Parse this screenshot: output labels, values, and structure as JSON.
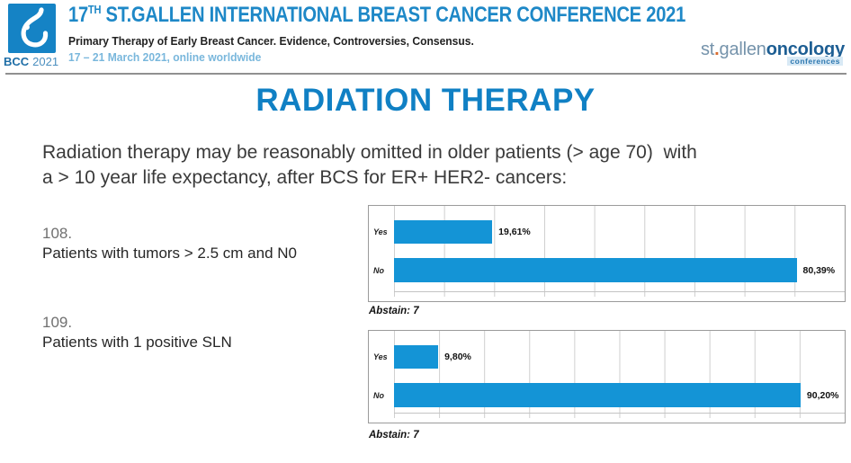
{
  "header": {
    "badge": {
      "bold": "BCC",
      "year": "2021"
    },
    "title_num": "17",
    "title_sup": "TH",
    "title_rest": " ST.GALLEN INTERNATIONAL BREAST CANCER CONFERENCE 2021",
    "subtitle": "Primary Therapy of Early Breast Cancer. Evidence, Controversies, Consensus.",
    "date_line": "17 – 21 March 2021, online worldwide",
    "org_logo": {
      "part1": "st",
      "dot": ".",
      "part2": "gallen",
      "part3": "oncology",
      "sub": "conferences"
    }
  },
  "main": {
    "title": "RADIATION THERAPY",
    "question_lines": [
      "Radiation therapy may be reasonably omitted in older patients (> age 70)  with",
      "a > 10 year life expectancy, after BCS for ER+ HER2- cancers:"
    ]
  },
  "items": [
    {
      "number": "108.",
      "label": "Patients with tumors > 2.5 cm and N0"
    },
    {
      "number": "109.",
      "label": "Patients with 1 positive SLN"
    }
  ],
  "chart_data": [
    {
      "type": "bar",
      "orientation": "horizontal",
      "question": "Patients with tumors > 2.5 cm and N0",
      "categories": [
        "Yes",
        "No"
      ],
      "values": [
        19.61,
        80.39
      ],
      "value_labels": [
        "19,61%",
        "80,39%"
      ],
      "abstain": "Abstain: 7",
      "xlim": [
        0,
        90
      ],
      "gridline_step": 10,
      "grid": true,
      "bar_color": "#1494d6"
    },
    {
      "type": "bar",
      "orientation": "horizontal",
      "question": "Patients with 1 positive SLN",
      "categories": [
        "Yes",
        "No"
      ],
      "values": [
        9.8,
        90.2
      ],
      "value_labels": [
        "9,80%",
        "90,20%"
      ],
      "abstain": "Abstain: 7",
      "xlim": [
        0,
        100
      ],
      "gridline_step": 10,
      "grid": true,
      "bar_color": "#1494d6"
    }
  ],
  "colors": {
    "accent_blue": "#1080c4",
    "header_blue": "#1e88c7",
    "bar_blue": "#1494d6",
    "date_blue": "#79b7dc",
    "logo_navy": "#1d5e93",
    "logo_orange": "#d96c2f"
  }
}
